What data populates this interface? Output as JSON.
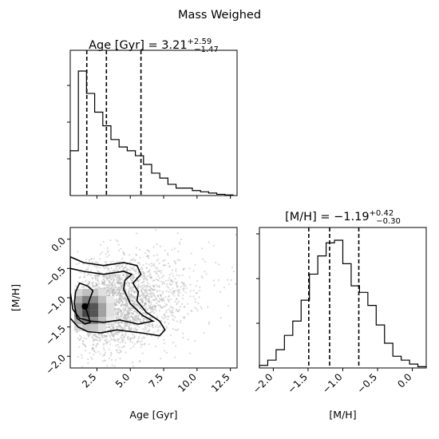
{
  "suptitle": "Mass Weighed",
  "chart_data": [
    {
      "type": "histogram",
      "panel": "top-left",
      "title": {
        "base": "Age [Gyr] = 3.21",
        "sup": "+2.59",
        "sub": "−1.47"
      },
      "xlim": [
        0.5,
        13.0
      ],
      "bin_edges": [
        0.5,
        1.11,
        1.72,
        2.33,
        2.94,
        3.55,
        4.16,
        4.77,
        5.38,
        5.99,
        6.6,
        7.21,
        7.82,
        8.43,
        9.04,
        9.65,
        10.26,
        10.87,
        11.48,
        12.09,
        12.7
      ],
      "counts": [
        0.36,
        1.0,
        0.82,
        0.67,
        0.56,
        0.45,
        0.39,
        0.36,
        0.32,
        0.25,
        0.18,
        0.14,
        0.09,
        0.06,
        0.06,
        0.04,
        0.03,
        0.02,
        0.01,
        0.005
      ],
      "quantiles": [
        1.74,
        3.21,
        5.8
      ],
      "x_ticks": [
        2.5,
        5.0,
        7.5,
        10.0,
        12.5
      ]
    },
    {
      "type": "scatter-contour",
      "panel": "bottom-left",
      "xlabel": "Age [Gyr]",
      "ylabel": "[M/H]",
      "xlim": [
        0.5,
        13.0
      ],
      "ylim": [
        -2.2,
        0.2
      ],
      "x_ticks": [
        2.5,
        5.0,
        7.5,
        10.0,
        12.5
      ],
      "x_tick_labels": [
        "2.5",
        "5.0",
        "7.5",
        "10.0",
        "12.5"
      ],
      "y_ticks": [
        0.0,
        -0.5,
        -1.0,
        -1.5,
        -2.0
      ],
      "y_tick_labels": [
        "0.0",
        "−0.5",
        "−1.0",
        "−1.5",
        "−2.0"
      ],
      "point_color": "#b0b0b0",
      "line_color": "#000000",
      "peak": {
        "age": 1.6,
        "mh": -1.15
      },
      "contours": [
        [
          [
            0.5,
            -0.3
          ],
          [
            1.5,
            -0.4
          ],
          [
            3.0,
            -0.45
          ],
          [
            4.5,
            -0.4
          ],
          [
            5.5,
            -0.45
          ],
          [
            5.8,
            -0.6
          ],
          [
            5.2,
            -0.75
          ],
          [
            5.6,
            -0.9
          ],
          [
            5.5,
            -1.05
          ],
          [
            6.2,
            -1.25
          ],
          [
            7.2,
            -1.4
          ],
          [
            7.6,
            -1.55
          ],
          [
            7.2,
            -1.65
          ],
          [
            5.8,
            -1.6
          ],
          [
            4.0,
            -1.55
          ],
          [
            2.8,
            -1.6
          ],
          [
            1.8,
            -1.58
          ],
          [
            1.1,
            -1.5
          ],
          [
            0.5,
            -1.35
          ]
        ],
        [
          [
            0.5,
            -0.5
          ],
          [
            1.5,
            -0.55
          ],
          [
            3.0,
            -0.6
          ],
          [
            4.5,
            -0.55
          ],
          [
            5.1,
            -0.6
          ],
          [
            4.6,
            -0.7
          ],
          [
            4.5,
            -0.85
          ],
          [
            5.0,
            -1.1
          ],
          [
            5.9,
            -1.3
          ],
          [
            6.7,
            -1.4
          ],
          [
            5.6,
            -1.45
          ],
          [
            4.2,
            -1.38
          ],
          [
            3.0,
            -1.42
          ],
          [
            2.0,
            -1.4
          ],
          [
            1.2,
            -1.35
          ],
          [
            0.7,
            -1.2
          ],
          [
            0.5,
            -0.9
          ]
        ],
        [
          [
            1.2,
            -0.75
          ],
          [
            1.8,
            -0.8
          ],
          [
            2.2,
            -0.88
          ],
          [
            2.0,
            -1.0
          ],
          [
            1.7,
            -1.2
          ],
          [
            2.0,
            -1.42
          ],
          [
            1.6,
            -1.45
          ],
          [
            1.0,
            -1.35
          ],
          [
            0.8,
            -1.1
          ],
          [
            0.9,
            -0.9
          ]
        ]
      ]
    },
    {
      "type": "histogram",
      "panel": "bottom-right",
      "title": {
        "base": "[M/H] = −1.19",
        "sup": "+0.42",
        "sub": "−0.30"
      },
      "xlabel": "[M/H]",
      "xlim": [
        -2.2,
        0.2
      ],
      "bin_edges": [
        -2.2,
        -2.08,
        -1.96,
        -1.84,
        -1.72,
        -1.6,
        -1.48,
        -1.36,
        -1.24,
        -1.12,
        -1.0,
        -0.88,
        -0.76,
        -0.64,
        -0.52,
        -0.4,
        -0.28,
        -0.16,
        -0.04,
        0.08,
        0.2
      ],
      "counts": [
        0.02,
        0.06,
        0.14,
        0.25,
        0.36,
        0.52,
        0.72,
        0.86,
        0.96,
        0.98,
        0.8,
        0.63,
        0.58,
        0.48,
        0.33,
        0.19,
        0.09,
        0.06,
        0.03,
        0.01
      ],
      "quantiles": [
        -1.49,
        -1.19,
        -0.77
      ],
      "x_ticks": [
        -2.0,
        -1.5,
        -1.0,
        -0.5,
        0.0
      ],
      "x_tick_labels": [
        "−2.0",
        "−1.5",
        "−1.0",
        "−0.5",
        "0.0"
      ]
    }
  ]
}
